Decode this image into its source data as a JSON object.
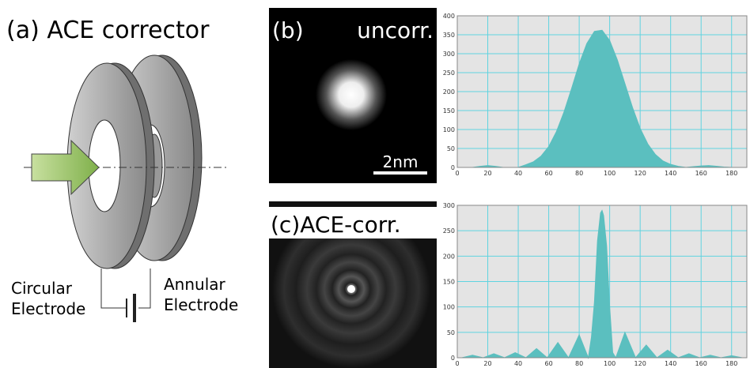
{
  "panel_a": {
    "title": "(a) ACE corrector",
    "circular_electrode": [
      "Circular",
      "Electrode"
    ],
    "annular_electrode": [
      "Annular",
      "Electrode"
    ]
  },
  "panel_b": {
    "label": "(b)",
    "caption": "uncorr.",
    "scale_bar": "2nm"
  },
  "panel_c": {
    "label": "(c)ACE-corr."
  },
  "chart_data": [
    {
      "type": "area",
      "color": "#5bbfbf",
      "grid": true,
      "x": [
        0,
        5,
        10,
        15,
        20,
        25,
        30,
        35,
        40,
        45,
        50,
        55,
        60,
        65,
        70,
        75,
        80,
        85,
        90,
        95,
        100,
        105,
        110,
        115,
        120,
        125,
        130,
        135,
        140,
        145,
        150,
        155,
        160,
        165,
        170,
        175,
        180,
        185,
        190
      ],
      "values": [
        0,
        0,
        0,
        3,
        5,
        3,
        0,
        0,
        0,
        7,
        15,
        30,
        55,
        94,
        146,
        208,
        273,
        327,
        359,
        362,
        335,
        284,
        221,
        158,
        103,
        62,
        34,
        17,
        8,
        3,
        0,
        2,
        4,
        5,
        3,
        1,
        0,
        0,
        0
      ],
      "xlim": [
        0,
        190
      ],
      "xticks": [
        0,
        20,
        40,
        60,
        80,
        100,
        120,
        140,
        160,
        180
      ],
      "ylim": [
        0,
        400
      ],
      "yticks": [
        0,
        50,
        100,
        150,
        200,
        250,
        300,
        350,
        400
      ]
    },
    {
      "type": "area",
      "color": "#5bbfbf",
      "grid": true,
      "x": [
        0,
        3,
        10,
        17,
        24,
        31,
        38,
        45,
        52,
        59,
        66,
        73,
        80,
        86,
        88,
        90,
        92,
        94,
        95,
        96,
        98,
        100,
        102,
        104,
        110,
        117,
        124,
        131,
        138,
        145,
        152,
        159,
        166,
        173,
        180,
        187,
        190
      ],
      "values": [
        0,
        0,
        5,
        0,
        8,
        0,
        10,
        0,
        18,
        0,
        30,
        0,
        45,
        0,
        40,
        110,
        230,
        285,
        290,
        280,
        220,
        100,
        10,
        0,
        50,
        0,
        25,
        0,
        15,
        0,
        8,
        0,
        5,
        0,
        4,
        0,
        0
      ],
      "xlim": [
        0,
        190
      ],
      "xticks": [
        0,
        20,
        40,
        60,
        80,
        100,
        120,
        140,
        160,
        180
      ],
      "ylim": [
        0,
        300
      ],
      "yticks": [
        0,
        50,
        100,
        150,
        200,
        250,
        300
      ]
    }
  ]
}
